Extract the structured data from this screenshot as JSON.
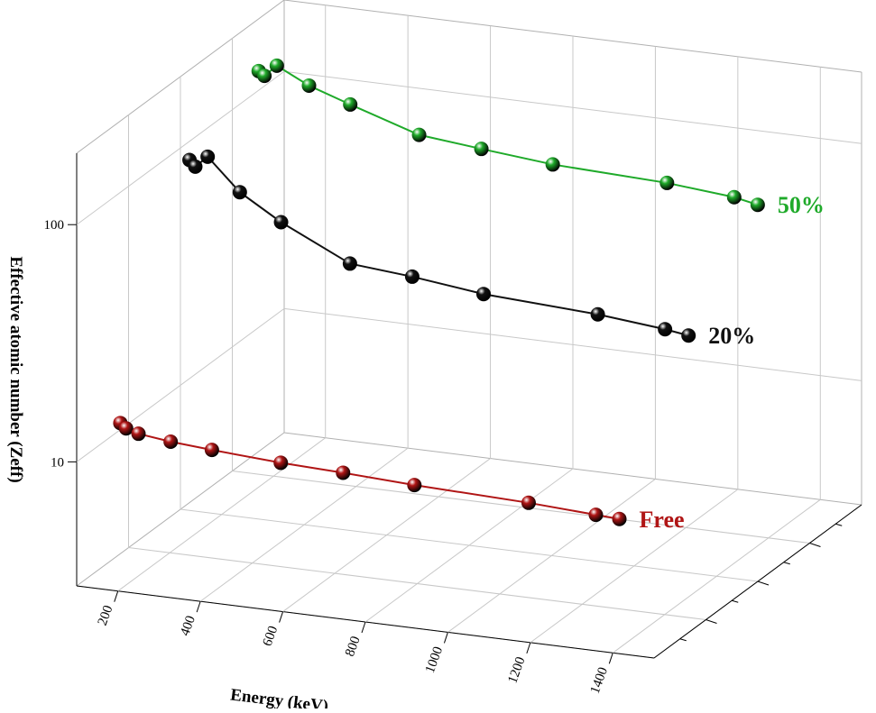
{
  "chart_data": {
    "type": "line3d",
    "x_label": "Energy (keV)",
    "y_label": "Effective atomic number (Zeff)",
    "x": [
      122,
      136,
      166,
      244,
      344,
      511,
      662,
      835,
      1112,
      1275,
      1332
    ],
    "xlim": [
      100,
      1500
    ],
    "xticks": [
      200,
      400,
      600,
      800,
      1000,
      1200,
      1400
    ],
    "ylim": [
      3,
      200
    ],
    "yticks": [
      10,
      100
    ],
    "log_scale": true,
    "grid": true,
    "series": [
      {
        "name": "Free",
        "color": "#b01515",
        "values": [
          11.5,
          11.0,
          10.6,
          10.2,
          9.9,
          9.5,
          9.3,
          9.0,
          8.7,
          8.4,
          8.3
        ]
      },
      {
        "name": "20%",
        "color": "#111111",
        "values": [
          90,
          85,
          95,
          70,
          55,
          40,
          38,
          35,
          33,
          31,
          30
        ]
      },
      {
        "name": "50%",
        "color": "#1faa2a",
        "values": [
          130,
          125,
          140,
          120,
          105,
          85,
          80,
          75,
          72,
          68,
          65
        ]
      }
    ]
  }
}
